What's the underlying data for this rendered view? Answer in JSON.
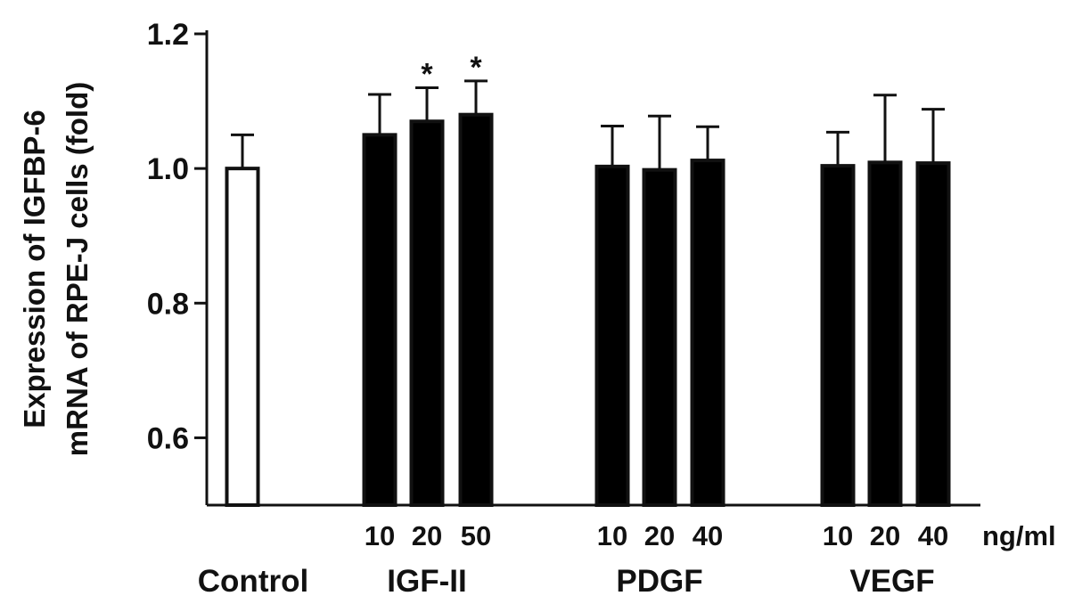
{
  "chart_data": {
    "type": "bar",
    "ylabel_lines": [
      "Expression of IGFBP-6",
      "mRNA of RPE-J cells (fold)"
    ],
    "ylim": [
      0.5,
      1.2
    ],
    "yticks": [
      0.6,
      0.8,
      1.0,
      1.2
    ],
    "ytick_labels": [
      "0.6",
      "0.8",
      "1.0",
      "1.2"
    ],
    "unit_label": "ng/ml",
    "groups": [
      {
        "name": "Control",
        "bars": [
          {
            "dose": "",
            "value": 1.0,
            "err": 0.05,
            "fill": "#ffffff",
            "star": false
          }
        ]
      },
      {
        "name": "IGF-II",
        "bars": [
          {
            "dose": "10",
            "value": 1.05,
            "err": 0.06,
            "fill": "#000000",
            "star": false
          },
          {
            "dose": "20",
            "value": 1.07,
            "err": 0.05,
            "fill": "#000000",
            "star": true
          },
          {
            "dose": "50",
            "value": 1.08,
            "err": 0.05,
            "fill": "#000000",
            "star": true
          }
        ]
      },
      {
        "name": "PDGF",
        "bars": [
          {
            "dose": "10",
            "value": 1.003,
            "err": 0.06,
            "fill": "#000000",
            "star": false
          },
          {
            "dose": "20",
            "value": 0.998,
            "err": 0.08,
            "fill": "#000000",
            "star": false
          },
          {
            "dose": "40",
            "value": 1.012,
            "err": 0.05,
            "fill": "#000000",
            "star": false
          }
        ]
      },
      {
        "name": "VEGF",
        "bars": [
          {
            "dose": "10",
            "value": 1.004,
            "err": 0.05,
            "fill": "#000000",
            "star": false
          },
          {
            "dose": "20",
            "value": 1.009,
            "err": 0.1,
            "fill": "#000000",
            "star": false
          },
          {
            "dose": "40",
            "value": 1.008,
            "err": 0.08,
            "fill": "#000000",
            "star": false
          }
        ]
      }
    ],
    "significance_marker": "*",
    "grid": false,
    "legend": "none"
  }
}
